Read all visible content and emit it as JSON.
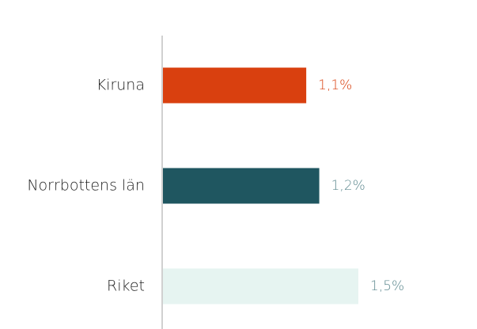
{
  "chart_data": {
    "type": "hbar",
    "categories": [
      "Kiruna",
      "Norrbottens län",
      "Riket"
    ],
    "values": [
      1.1,
      1.2,
      1.5
    ],
    "value_labels": [
      "1,1%",
      "1,2%",
      "1,5%"
    ],
    "colors": [
      "#d9400f",
      "#1f5660",
      "#e6f4f1"
    ],
    "value_label_colors": [
      "#d9400f",
      "#5f8a90",
      "#5f8a90"
    ]
  }
}
